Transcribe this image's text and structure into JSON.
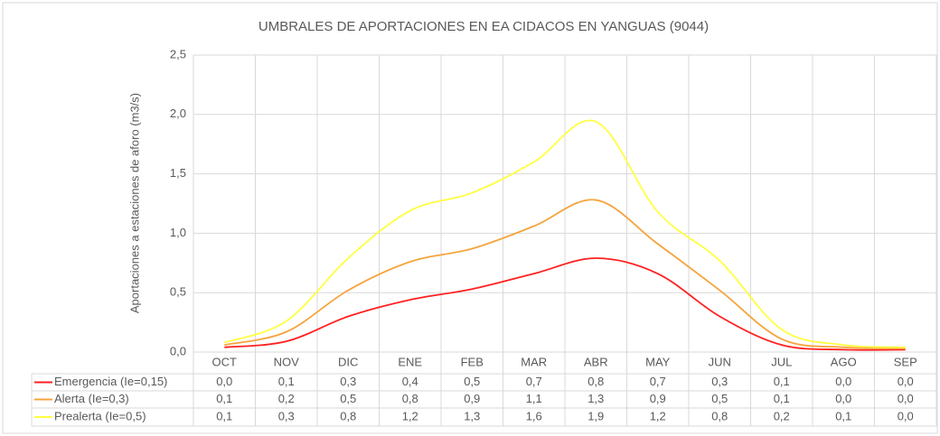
{
  "chart_data": {
    "type": "line",
    "smooth": true,
    "title": "UMBRALES DE APORTACIONES EN EA CIDACOS EN YANGUAS (9044)",
    "y_label": "Aportaciones a estaciones de aforo (m3/s)",
    "categories": [
      "OCT",
      "NOV",
      "DIC",
      "ENE",
      "FEB",
      "MAR",
      "ABR",
      "MAY",
      "JUN",
      "JUL",
      "AGO",
      "SEP"
    ],
    "series": [
      {
        "name": "Emergencia (Ie=0,15)",
        "color": "#ff2020",
        "values": [
          0.04,
          0.09,
          0.3,
          0.44,
          0.53,
          0.66,
          0.79,
          0.66,
          0.3,
          0.06,
          0.02,
          0.02
        ],
        "value_labels": [
          "0,0",
          "0,1",
          "0,3",
          "0,4",
          "0,5",
          "0,7",
          "0,8",
          "0,7",
          "0,3",
          "0,1",
          "0,0",
          "0,0"
        ]
      },
      {
        "name": "Alerta (Ie=0,3)",
        "color": "#f5a43c",
        "values": [
          0.06,
          0.17,
          0.52,
          0.76,
          0.87,
          1.06,
          1.28,
          0.91,
          0.52,
          0.11,
          0.04,
          0.03
        ],
        "value_labels": [
          "0,1",
          "0,2",
          "0,5",
          "0,8",
          "0,9",
          "1,1",
          "1,3",
          "0,9",
          "0,5",
          "0,1",
          "0,0",
          "0,0"
        ]
      },
      {
        "name": "Prealerta (Ie=0,5)",
        "color": "#ffff40",
        "values": [
          0.08,
          0.26,
          0.79,
          1.19,
          1.34,
          1.6,
          1.94,
          1.18,
          0.77,
          0.19,
          0.06,
          0.04
        ],
        "value_labels": [
          "0,1",
          "0,3",
          "0,8",
          "1,2",
          "1,3",
          "1,6",
          "1,9",
          "1,2",
          "0,8",
          "0,2",
          "0,1",
          "0,0"
        ]
      }
    ],
    "ylim": [
      0,
      2.5
    ],
    "yticks": [
      {
        "value": 0,
        "label": "0,0"
      },
      {
        "value": 0.5,
        "label": "0,5"
      },
      {
        "value": 1,
        "label": "1,0"
      },
      {
        "value": 1.5,
        "label": "1,5"
      },
      {
        "value": 2,
        "label": "2,0"
      },
      {
        "value": 2.5,
        "label": "2,5"
      }
    ],
    "grid": true,
    "legend": "data-table"
  }
}
